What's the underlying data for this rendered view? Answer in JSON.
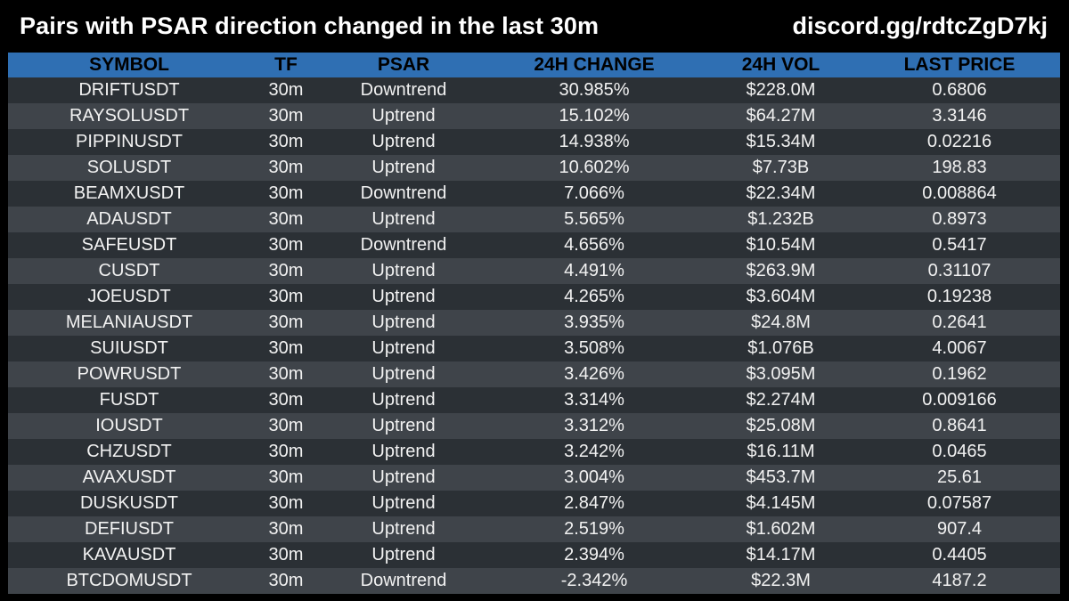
{
  "header": {
    "title": "Pairs with PSAR direction changed in the last 30m",
    "discord": "discord.gg/rdtcZgD7kj"
  },
  "table": {
    "columns": [
      "SYMBOL",
      "TF",
      "PSAR",
      "24H CHANGE",
      "24H VOL",
      "LAST PRICE"
    ],
    "rows": [
      [
        "DRIFTUSDT",
        "30m",
        "Downtrend",
        "30.985%",
        "$228.0M",
        "0.6806"
      ],
      [
        "RAYSOLUSDT",
        "30m",
        "Uptrend",
        "15.102%",
        "$64.27M",
        "3.3146"
      ],
      [
        "PIPPINUSDT",
        "30m",
        "Uptrend",
        "14.938%",
        "$15.34M",
        "0.02216"
      ],
      [
        "SOLUSDT",
        "30m",
        "Uptrend",
        "10.602%",
        "$7.73B",
        "198.83"
      ],
      [
        "BEAMXUSDT",
        "30m",
        "Downtrend",
        "7.066%",
        "$22.34M",
        "0.008864"
      ],
      [
        "ADAUSDT",
        "30m",
        "Uptrend",
        "5.565%",
        "$1.232B",
        "0.8973"
      ],
      [
        "SAFEUSDT",
        "30m",
        "Downtrend",
        "4.656%",
        "$10.54M",
        "0.5417"
      ],
      [
        "CUSDT",
        "30m",
        "Uptrend",
        "4.491%",
        "$263.9M",
        "0.31107"
      ],
      [
        "JOEUSDT",
        "30m",
        "Uptrend",
        "4.265%",
        "$3.604M",
        "0.19238"
      ],
      [
        "MELANIAUSDT",
        "30m",
        "Uptrend",
        "3.935%",
        "$24.8M",
        "0.2641"
      ],
      [
        "SUIUSDT",
        "30m",
        "Uptrend",
        "3.508%",
        "$1.076B",
        "4.0067"
      ],
      [
        "POWRUSDT",
        "30m",
        "Uptrend",
        "3.426%",
        "$3.095M",
        "0.1962"
      ],
      [
        "FUSDT",
        "30m",
        "Uptrend",
        "3.314%",
        "$2.274M",
        "0.009166"
      ],
      [
        "IOUSDT",
        "30m",
        "Uptrend",
        "3.312%",
        "$25.08M",
        "0.8641"
      ],
      [
        "CHZUSDT",
        "30m",
        "Uptrend",
        "3.242%",
        "$16.11M",
        "0.0465"
      ],
      [
        "AVAXUSDT",
        "30m",
        "Uptrend",
        "3.004%",
        "$453.7M",
        "25.61"
      ],
      [
        "DUSKUSDT",
        "30m",
        "Uptrend",
        "2.847%",
        "$4.145M",
        "0.07587"
      ],
      [
        "DEFIUSDT",
        "30m",
        "Uptrend",
        "2.519%",
        "$1.602M",
        "907.4"
      ],
      [
        "KAVAUSDT",
        "30m",
        "Uptrend",
        "2.394%",
        "$14.17M",
        "0.4405"
      ],
      [
        "BTCDOMUSDT",
        "30m",
        "Downtrend",
        "-2.342%",
        "$22.3M",
        "4187.2"
      ]
    ]
  },
  "colors": {
    "background": "#000000",
    "header_bar": "#2f6fb3",
    "row_dark": "#2b3035",
    "row_light": "#3f444a",
    "text": "#f2f2f2"
  }
}
